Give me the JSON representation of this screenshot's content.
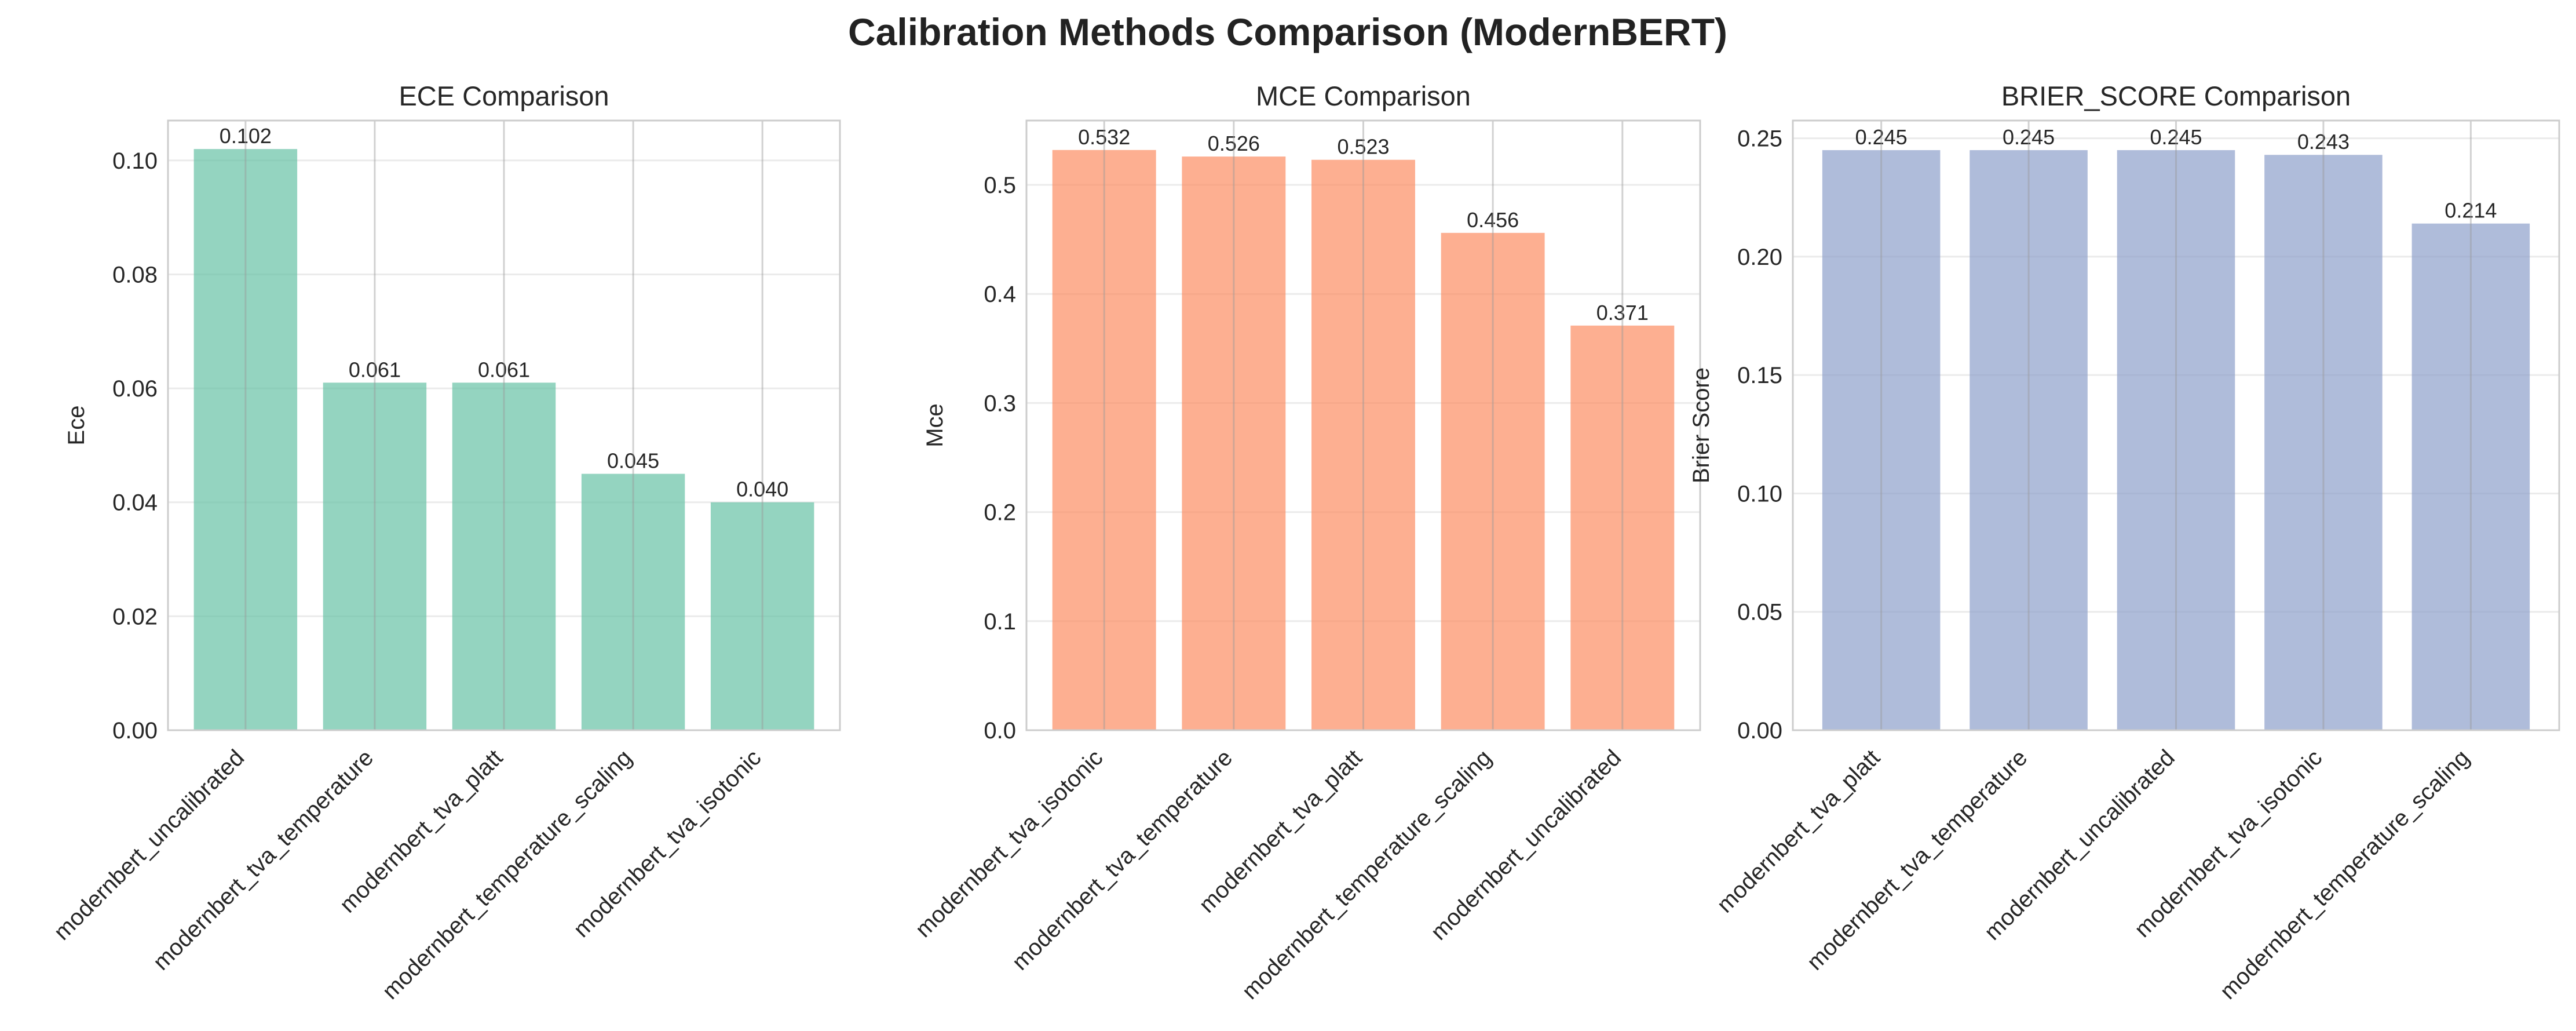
{
  "title": "Calibration Methods Comparison (ModernBERT)",
  "chart_data": [
    {
      "type": "bar",
      "title": "ECE Comparison",
      "xlabel": "",
      "ylabel": "Ece",
      "ylim": [
        0,
        0.107
      ],
      "yticks": [
        "0.00",
        "0.02",
        "0.04",
        "0.06",
        "0.08",
        "0.10"
      ],
      "categories": [
        "modernbert_uncalibrated",
        "modernbert_tva_temperature",
        "modernbert_tva_platt",
        "modernbert_temperature_scaling",
        "modernbert_tva_isotonic"
      ],
      "values": [
        0.102,
        0.061,
        0.061,
        0.045,
        0.04
      ],
      "labels": [
        "0.102",
        "0.061",
        "0.061",
        "0.045",
        "0.040"
      ],
      "color": "#66c2a5",
      "grid": true
    },
    {
      "type": "bar",
      "title": "MCE Comparison",
      "xlabel": "",
      "ylabel": "Mce",
      "ylim": [
        0,
        0.559
      ],
      "yticks": [
        "0.0",
        "0.1",
        "0.2",
        "0.3",
        "0.4",
        "0.5"
      ],
      "categories": [
        "modernbert_tva_isotonic",
        "modernbert_tva_temperature",
        "modernbert_tva_platt",
        "modernbert_temperature_scaling",
        "modernbert_uncalibrated"
      ],
      "values": [
        0.532,
        0.526,
        0.523,
        0.456,
        0.371
      ],
      "labels": [
        "0.532",
        "0.526",
        "0.523",
        "0.456",
        "0.371"
      ],
      "color": "#fc8d62",
      "grid": true
    },
    {
      "type": "bar",
      "title": "BRIER_SCORE Comparison",
      "xlabel": "",
      "ylabel": "Brier Score",
      "ylim": [
        0,
        0.2575
      ],
      "yticks": [
        "0.00",
        "0.05",
        "0.10",
        "0.15",
        "0.20",
        "0.25"
      ],
      "categories": [
        "modernbert_tva_platt",
        "modernbert_tva_temperature",
        "modernbert_uncalibrated",
        "modernbert_tva_isotonic",
        "modernbert_temperature_scaling"
      ],
      "values": [
        0.245,
        0.245,
        0.245,
        0.243,
        0.214
      ],
      "labels": [
        "0.245",
        "0.245",
        "0.245",
        "0.243",
        "0.214"
      ],
      "color": "#8da0cb",
      "grid": true
    }
  ]
}
